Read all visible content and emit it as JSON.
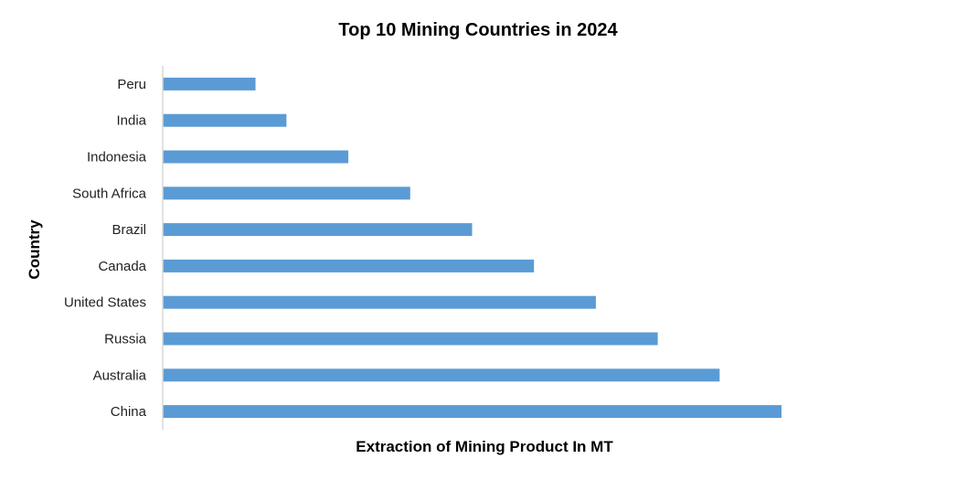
{
  "chart_data": {
    "type": "bar",
    "orientation": "horizontal",
    "title": "Top 10 Mining Countries in 2024",
    "xlabel": "Extraction of Mining Product In MT",
    "ylabel": "Country",
    "categories": [
      "China",
      "Australia",
      "Russia",
      "United States",
      "Canada",
      "Brazil",
      "South Africa",
      "Indonesia",
      "India",
      "Peru"
    ],
    "values": [
      10,
      9,
      8,
      7,
      6,
      5,
      4,
      3,
      2,
      1.5
    ],
    "xlim": [
      0,
      10
    ],
    "grid": false,
    "legend": "none",
    "bar_color": "#5b9bd5",
    "axis_color": "#d9d9d9"
  }
}
